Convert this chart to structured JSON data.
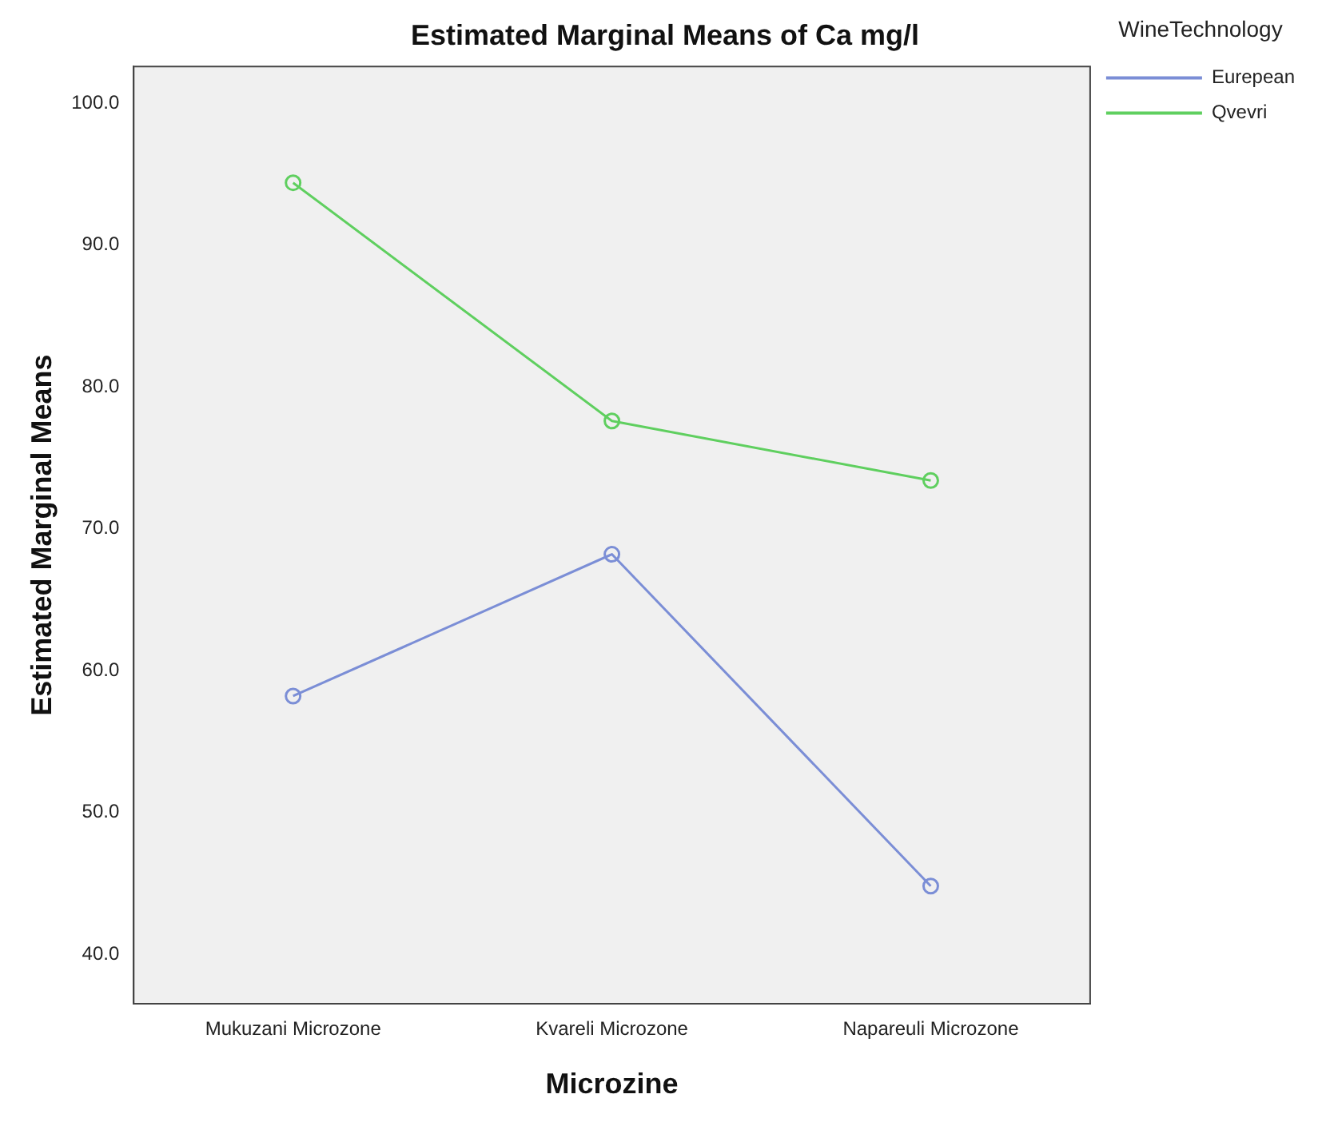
{
  "chart_data": {
    "type": "line",
    "title": "Estimated Marginal Means of Ca mg/l",
    "xlabel": "Microzine",
    "ylabel": "Estimated Marginal Means",
    "legend_title": "WineTechnology",
    "categories": [
      "Mukuzani Microzone",
      "Kvareli Microzone",
      "Napareuli Microzone"
    ],
    "series": [
      {
        "name": "Eurepean",
        "color": "#7b8ed6",
        "values": [
          58.2,
          68.2,
          44.8
        ]
      },
      {
        "name": "Qvevri",
        "color": "#5fcf5f",
        "values": [
          94.4,
          77.6,
          73.4
        ]
      }
    ],
    "ylim": [
      36.5,
      102.6
    ],
    "yticks": [
      {
        "value": 40,
        "label": "40.0"
      },
      {
        "value": 50,
        "label": "50.0"
      },
      {
        "value": 60,
        "label": "60.0"
      },
      {
        "value": 70,
        "label": "70.0"
      },
      {
        "value": 80,
        "label": "80.0"
      },
      {
        "value": 90,
        "label": "90.0"
      },
      {
        "value": 100,
        "label": "100.0"
      }
    ],
    "grid": false,
    "legend": "top right",
    "marker": "circle",
    "line_style": "solid"
  }
}
